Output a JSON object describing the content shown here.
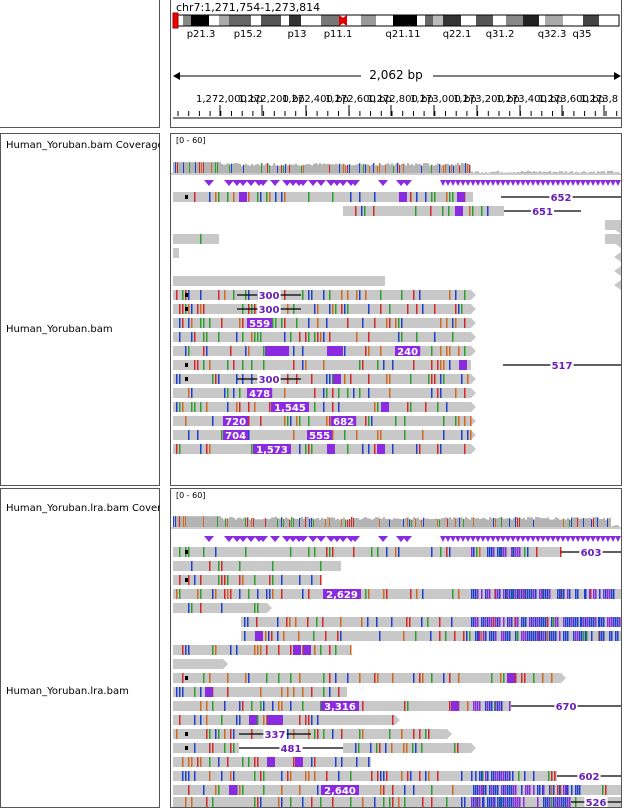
{
  "locus": "chr7:1,271,754-1,273,814",
  "bands": [
    "p21.3",
    "p15.2",
    "p13",
    "p11.1",
    "q21.11",
    "q22.1",
    "q31.2",
    "q32.3",
    "q35"
  ],
  "span_label": "2,062 bp",
  "ticks": [
    "1,272,000 bp",
    "1,272,200 bp",
    "1,272,400 bp",
    "1,272,600 bp",
    "1,272,800 bp",
    "1,273,000 bp",
    "1,273,200 bp",
    "1,273,400 bp",
    "1,273,600 bp",
    "1,273,8"
  ],
  "panels": [
    {
      "coverage_name": "Human_Yoruban.bam Coverage",
      "alignment_name": "Human_Yoruban.bam",
      "range": "[0 - 60]",
      "indel_labels": [
        "652",
        "651",
        "300",
        "300",
        "559",
        "240",
        "517",
        "300",
        "478",
        "1,545",
        "720",
        "682",
        "704",
        "555",
        "1,573"
      ]
    },
    {
      "coverage_name": "Human_Yoruban.lra.bam Coverage",
      "alignment_name": "Human_Yoruban.lra.bam",
      "range": "[0 - 60]",
      "indel_labels": [
        "603",
        "2,629",
        "3,316",
        "670",
        "337",
        "481",
        "602",
        "2,640",
        "526"
      ]
    }
  ],
  "colors": {
    "read": "#c8c8c8",
    "insertion": "#8a2be2",
    "mismatch_a": "#2ca02c",
    "mismatch_c": "#1f3fd1",
    "mismatch_g": "#d2691e",
    "mismatch_t": "#d62728"
  }
}
